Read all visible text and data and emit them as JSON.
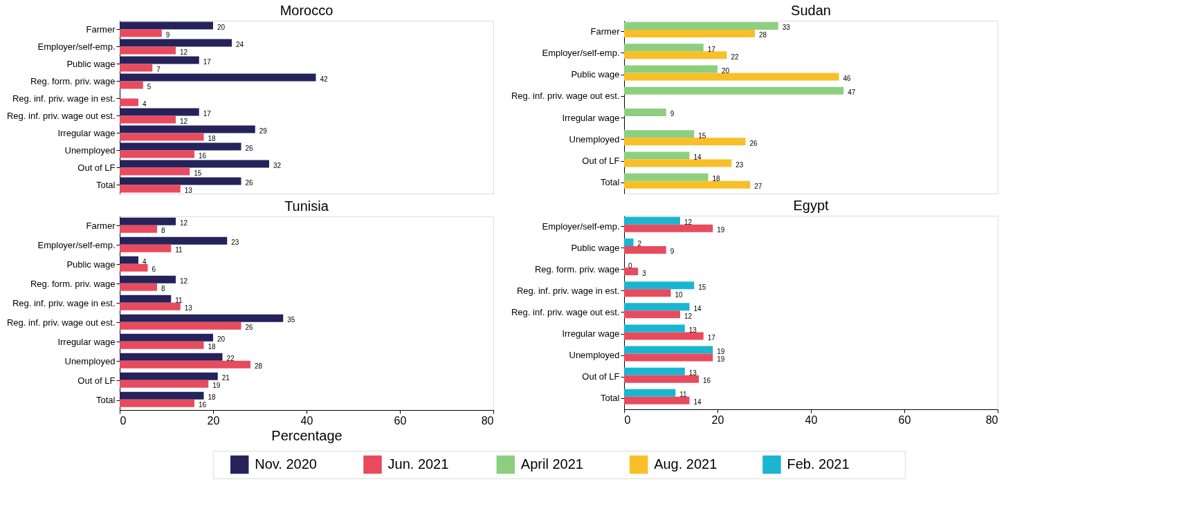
{
  "chart_data": [
    {
      "type": "bar",
      "orientation": "horizontal",
      "title": "Morocco",
      "categories": [
        "Farmer",
        "Employer/self-emp.",
        "Public wage",
        "Reg. form. priv. wage",
        "Reg. inf. priv. wage in est.",
        "Reg. inf. priv. wage out  est.",
        "Irregular wage",
        "Unemployed",
        "Out of LF",
        "Total"
      ],
      "series": [
        {
          "name": "Nov. 2020",
          "color": "#25235a",
          "values": [
            20,
            24,
            17,
            42,
            null,
            17,
            29,
            26,
            32,
            26
          ]
        },
        {
          "name": "Jun. 2021",
          "color": "#e84b5e",
          "values": [
            9,
            12,
            7,
            5,
            4,
            12,
            18,
            16,
            15,
            13
          ]
        }
      ],
      "xlim": [
        0,
        80
      ],
      "xticks": [
        0,
        20,
        40,
        60,
        80
      ],
      "tick_labels": "y",
      "data_labels": true,
      "grid": false,
      "legend": "bottom"
    },
    {
      "type": "bar",
      "orientation": "horizontal",
      "title": "Sudan",
      "categories": [
        "Farmer",
        "Employer/self-emp.",
        "Public wage",
        "Reg. inf. priv. wage out  est.",
        "Irregular wage",
        "Unemployed",
        "Out of LF",
        "Total"
      ],
      "series": [
        {
          "name": "April 2021",
          "color": "#8dcf7f",
          "values": [
            33,
            17,
            20,
            47,
            9,
            15,
            14,
            18
          ]
        },
        {
          "name": "Aug. 2021",
          "color": "#f8bf27",
          "values": [
            28,
            22,
            46,
            null,
            null,
            26,
            23,
            27
          ]
        }
      ],
      "xlim": [
        0,
        80
      ],
      "xticks": [
        0,
        20,
        40,
        60,
        80
      ],
      "tick_labels": "y",
      "data_labels": true,
      "grid": false,
      "legend": "bottom"
    },
    {
      "type": "bar",
      "orientation": "horizontal",
      "title": "Tunisia",
      "xlabel": "Percentage",
      "categories": [
        "Farmer",
        "Employer/self-emp.",
        "Public wage",
        "Reg. form. priv. wage",
        "Reg. inf. priv. wage in est.",
        "Reg. inf. priv. wage out  est.",
        "Irregular wage",
        "Unemployed",
        "Out of LF",
        "Total"
      ],
      "series": [
        {
          "name": "Nov. 2020",
          "color": "#25235a",
          "values": [
            12,
            23,
            4,
            12,
            11,
            35,
            20,
            22,
            21,
            18
          ]
        },
        {
          "name": "Jun. 2021",
          "color": "#e84b5e",
          "values": [
            8,
            11,
            6,
            8,
            13,
            26,
            18,
            28,
            19,
            16
          ]
        }
      ],
      "xlim": [
        0,
        80
      ],
      "xticks": [
        0,
        20,
        40,
        60,
        80
      ],
      "data_labels": true,
      "grid": false,
      "legend": "bottom"
    },
    {
      "type": "bar",
      "orientation": "horizontal",
      "title": "Egypt",
      "categories": [
        "Employer/self-emp.",
        "Public wage",
        "Reg. form. priv. wage",
        "Reg. inf. priv. wage in est.",
        "Reg. inf. priv. wage out  est.",
        "Irregular wage",
        "Unemployed",
        "Out of LF",
        "Total"
      ],
      "series": [
        {
          "name": "Feb. 2021",
          "color": "#1ab5d1",
          "values": [
            12,
            2,
            0,
            15,
            14,
            13,
            19,
            13,
            11
          ]
        },
        {
          "name": "Jun. 2021",
          "color": "#e84b5e",
          "values": [
            19,
            9,
            3,
            10,
            12,
            17,
            19,
            16,
            14
          ]
        }
      ],
      "xlim": [
        0,
        80
      ],
      "xticks": [
        0,
        20,
        40,
        60,
        80
      ],
      "data_labels": true,
      "grid": false,
      "legend": "bottom"
    }
  ]
}
